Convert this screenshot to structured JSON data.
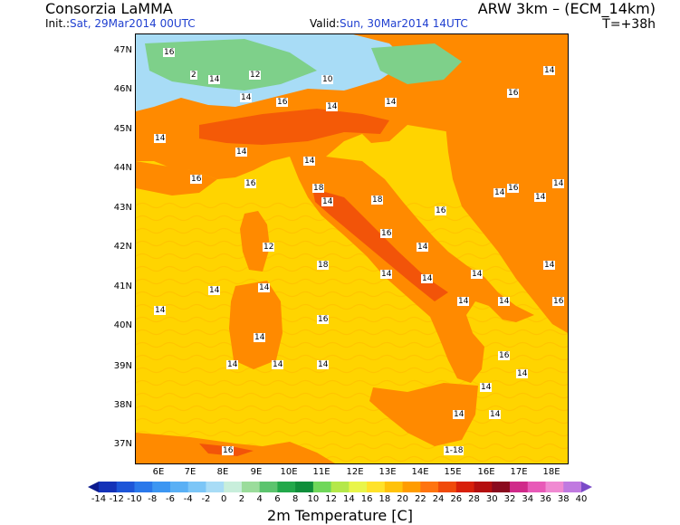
{
  "header": {
    "organization": "Consorzia LaMMA",
    "init_label": "Init.:",
    "init_value": "Sat, 29Mar2014 00UTC",
    "valid_label": "Valid:",
    "valid_value": "Sun, 30Mar2014 14UTC",
    "model": "ARW 3km – (ECM_14km)",
    "step": "T=+38h"
  },
  "map": {
    "lat_labels": [
      "47N",
      "46N",
      "45N",
      "44N",
      "43N",
      "42N",
      "41N",
      "40N",
      "39N",
      "38N",
      "37N"
    ],
    "lon_labels": [
      "6E",
      "7E",
      "8E",
      "9E",
      "10E",
      "11E",
      "12E",
      "13E",
      "14E",
      "15E",
      "16E",
      "17E",
      "18E"
    ],
    "value_labels": [
      "16",
      "14",
      "12",
      "10",
      "2",
      "14",
      "14",
      "16",
      "14",
      "14",
      "16",
      "14",
      "16",
      "14",
      "16",
      "14",
      "18",
      "14",
      "18",
      "16",
      "16",
      "14",
      "14",
      "14",
      "14",
      "12",
      "18",
      "16",
      "14",
      "14",
      "14",
      "14",
      "14",
      "14",
      "16",
      "14",
      "14",
      "14",
      "16",
      "14",
      "14",
      "14",
      "14",
      "16",
      "14",
      "14",
      "14",
      "14",
      "1-18",
      "16"
    ]
  },
  "colorbar": {
    "ticks": [
      "-14",
      "-12",
      "-10",
      "-8",
      "-6",
      "-4",
      "-2",
      "0",
      "2",
      "4",
      "6",
      "8",
      "10",
      "12",
      "14",
      "16",
      "18",
      "20",
      "22",
      "24",
      "26",
      "28",
      "30",
      "32",
      "34",
      "36",
      "38",
      "40"
    ],
    "colors": [
      "#0c1a8e",
      "#1432b8",
      "#1d55d8",
      "#2a78ea",
      "#3c96f2",
      "#5ab0f5",
      "#7cc6f7",
      "#a8dcf6",
      "#c8eedb",
      "#9bdc9b",
      "#5cc46e",
      "#22a84a",
      "#0f8e3a",
      "#6fd75a",
      "#b4e84a",
      "#e9f54a",
      "#ffe22a",
      "#ffc20a",
      "#ff9c00",
      "#ff7410",
      "#f04a0a",
      "#d8200a",
      "#b40f0f",
      "#8a0a1e",
      "#d02a8a",
      "#e85ab8",
      "#f08ad2",
      "#c07ae0",
      "#7a4ac8"
    ],
    "title": "2m Temperature [C]"
  },
  "theme": {
    "sea_yellow": "#ffd400",
    "land_orange": "#ff8a00",
    "warm_red": "#f04a0a",
    "alpine_green": "#7ed08a",
    "header_blue": "#1f3fd0"
  }
}
